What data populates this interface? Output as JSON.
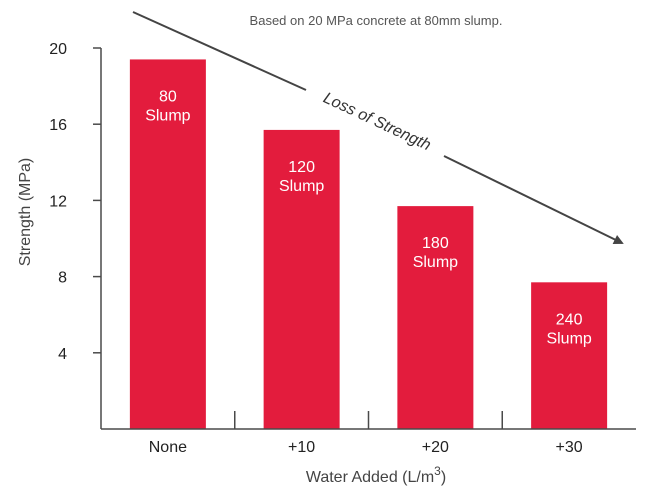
{
  "chart_data": {
    "type": "bar",
    "subtitle": "Based on 20 MPa concrete at 80mm slump.",
    "xlabel": "Water Added (L/m",
    "xlabel_superscript": "3",
    "xlabel_suffix": ")",
    "ylabel": "Strength (MPa)",
    "categories": [
      "None",
      "+10",
      "+20",
      "+30"
    ],
    "values": [
      19.4,
      15.7,
      11.7,
      7.7
    ],
    "bar_labels": [
      [
        "80",
        "Slump"
      ],
      [
        "120",
        "Slump"
      ],
      [
        "180",
        "Slump"
      ],
      [
        "240",
        "Slump"
      ]
    ],
    "ylim": [
      0,
      20
    ],
    "yticks": [
      4,
      8,
      12,
      16,
      20
    ],
    "bar_color": "#e31c3d",
    "annotation": "Loss of Strength",
    "grid": false,
    "legend": "none"
  }
}
